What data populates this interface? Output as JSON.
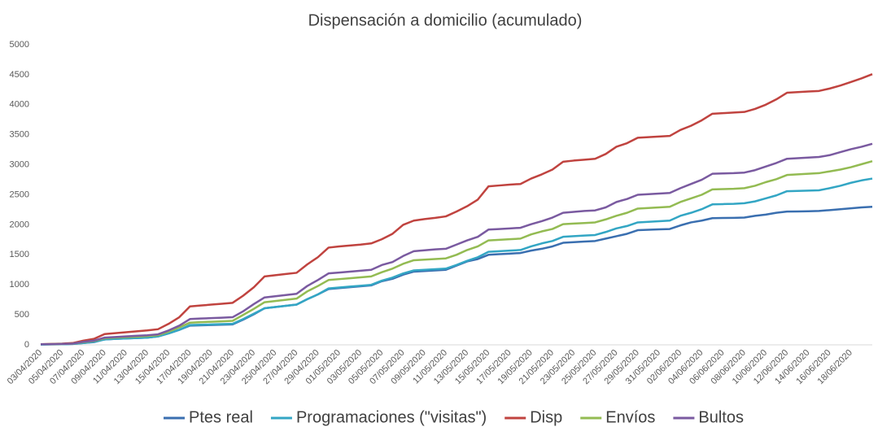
{
  "chart_data": {
    "type": "line",
    "title": "Dispensación a domicilio (acumulado)",
    "categories": [
      "03/04/2020",
      null,
      "05/04/2020",
      null,
      "07/04/2020",
      null,
      "09/04/2020",
      null,
      "11/04/2020",
      null,
      "13/04/2020",
      null,
      "15/04/2020",
      null,
      "17/04/2020",
      null,
      "19/04/2020",
      null,
      "21/04/2020",
      null,
      "23/04/2020",
      null,
      "25/04/2020",
      null,
      "27/04/2020",
      null,
      "29/04/2020",
      null,
      "01/05/2020",
      null,
      "03/05/2020",
      null,
      "05/05/2020",
      null,
      "07/05/2020",
      null,
      "09/05/2020",
      null,
      "11/05/2020",
      null,
      "13/05/2020",
      null,
      "15/05/2020",
      null,
      "17/05/2020",
      null,
      "19/05/2020",
      null,
      "21/05/2020",
      null,
      "23/05/2020",
      null,
      "25/05/2020",
      null,
      "27/05/2020",
      null,
      "29/05/2020",
      null,
      "31/05/2020",
      null,
      "02/06/2020",
      null,
      "04/06/2020",
      null,
      "06/06/2020",
      null,
      "08/06/2020",
      null,
      "10/06/2020",
      null,
      "12/06/2020",
      null,
      "14/06/2020",
      null,
      "16/06/2020",
      null,
      "18/06/2020",
      null,
      null
    ],
    "series": [
      {
        "name": "Ptes real",
        "color": "#3a6fb0",
        "values": [
          5,
          8,
          10,
          15,
          30,
          45,
          90,
          100,
          107,
          114,
          120,
          140,
          190,
          250,
          320,
          325,
          330,
          335,
          340,
          420,
          510,
          610,
          630,
          650,
          670,
          760,
          840,
          930,
          945,
          960,
          975,
          990,
          1060,
          1100,
          1170,
          1220,
          1230,
          1240,
          1250,
          1320,
          1390,
          1430,
          1500,
          1510,
          1520,
          1530,
          1570,
          1600,
          1640,
          1700,
          1710,
          1720,
          1730,
          1770,
          1810,
          1850,
          1910,
          1917,
          1924,
          1930,
          1990,
          2040,
          2070,
          2110,
          2113,
          2116,
          2120,
          2150,
          2170,
          2200,
          2220,
          2223,
          2226,
          2230,
          2245,
          2260,
          2275,
          2290,
          2300
        ]
      },
      {
        "name": "Programaciones (\"visitas\")",
        "color": "#33a6c4",
        "values": [
          5,
          8,
          10,
          15,
          30,
          50,
          90,
          100,
          107,
          114,
          120,
          140,
          190,
          250,
          330,
          335,
          340,
          345,
          350,
          430,
          520,
          610,
          630,
          650,
          670,
          760,
          840,
          940,
          955,
          970,
          985,
          1000,
          1070,
          1120,
          1190,
          1240,
          1250,
          1260,
          1270,
          1330,
          1400,
          1460,
          1550,
          1560,
          1570,
          1580,
          1640,
          1690,
          1730,
          1800,
          1810,
          1820,
          1830,
          1880,
          1940,
          1980,
          2040,
          2050,
          2060,
          2070,
          2150,
          2200,
          2260,
          2340,
          2345,
          2350,
          2360,
          2390,
          2440,
          2490,
          2560,
          2565,
          2570,
          2575,
          2610,
          2650,
          2700,
          2740,
          2770
        ]
      },
      {
        "name": "Disp",
        "color": "#c0433f",
        "values": [
          10,
          15,
          20,
          30,
          70,
          100,
          180,
          195,
          210,
          225,
          240,
          260,
          350,
          460,
          640,
          655,
          670,
          685,
          700,
          820,
          960,
          1140,
          1160,
          1180,
          1200,
          1340,
          1460,
          1620,
          1640,
          1655,
          1670,
          1690,
          1760,
          1850,
          2000,
          2070,
          2095,
          2115,
          2140,
          2220,
          2310,
          2420,
          2640,
          2655,
          2670,
          2680,
          2770,
          2840,
          2920,
          3050,
          3070,
          3085,
          3100,
          3180,
          3300,
          3360,
          3450,
          3460,
          3470,
          3480,
          3580,
          3650,
          3740,
          3850,
          3860,
          3870,
          3880,
          3930,
          4000,
          4090,
          4200,
          4210,
          4220,
          4230,
          4270,
          4320,
          4380,
          4440,
          4510
        ]
      },
      {
        "name": "Envíos",
        "color": "#93bb52",
        "values": [
          10,
          12,
          15,
          20,
          45,
          65,
          110,
          120,
          128,
          136,
          145,
          160,
          220,
          290,
          370,
          378,
          385,
          392,
          400,
          500,
          600,
          710,
          730,
          750,
          770,
          890,
          980,
          1080,
          1095,
          1110,
          1125,
          1140,
          1210,
          1270,
          1350,
          1410,
          1420,
          1430,
          1440,
          1500,
          1580,
          1640,
          1740,
          1750,
          1760,
          1770,
          1840,
          1890,
          1930,
          2010,
          2020,
          2030,
          2040,
          2090,
          2150,
          2200,
          2270,
          2280,
          2290,
          2300,
          2380,
          2440,
          2500,
          2590,
          2595,
          2600,
          2610,
          2650,
          2710,
          2760,
          2830,
          2840,
          2850,
          2860,
          2890,
          2920,
          2960,
          3010,
          3060
        ]
      },
      {
        "name": "Bultos",
        "color": "#7a5aa0",
        "values": [
          10,
          12,
          15,
          20,
          50,
          70,
          120,
          130,
          140,
          150,
          160,
          175,
          240,
          320,
          430,
          438,
          445,
          452,
          460,
          560,
          680,
          790,
          810,
          830,
          850,
          980,
          1080,
          1190,
          1205,
          1220,
          1235,
          1250,
          1330,
          1380,
          1480,
          1560,
          1575,
          1590,
          1600,
          1670,
          1740,
          1800,
          1920,
          1930,
          1940,
          1950,
          2010,
          2060,
          2120,
          2200,
          2215,
          2230,
          2240,
          2290,
          2380,
          2430,
          2500,
          2510,
          2520,
          2530,
          2610,
          2680,
          2750,
          2850,
          2855,
          2860,
          2870,
          2910,
          2970,
          3030,
          3100,
          3110,
          3120,
          3130,
          3160,
          3210,
          3260,
          3300,
          3350
        ]
      }
    ],
    "ylim": [
      0,
      5000
    ],
    "yticks": [
      0,
      500,
      1000,
      1500,
      2000,
      2500,
      3000,
      3500,
      4000,
      4500,
      5000
    ],
    "grid": false,
    "legend": "bottom"
  }
}
